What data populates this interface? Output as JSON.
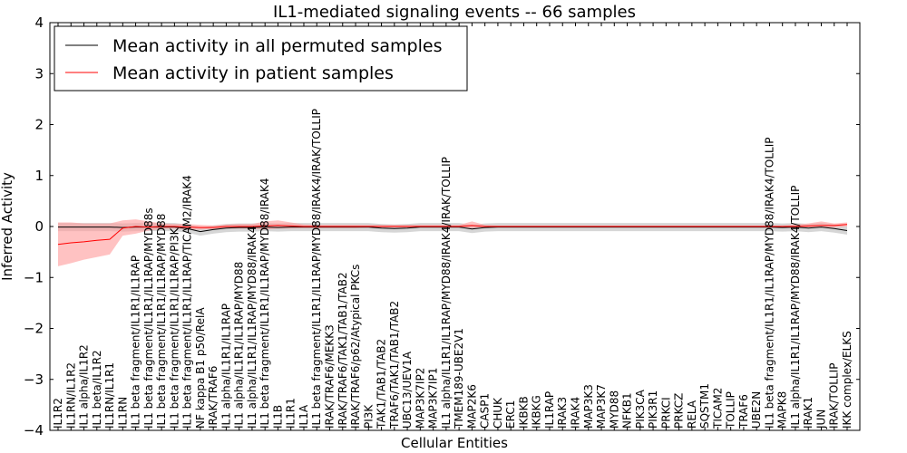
{
  "chart_data": {
    "type": "line",
    "title": "IL1-mediated signaling events -- 66 samples",
    "xlabel": "Cellular Entities",
    "ylabel": "Inferred Activity",
    "ylim": [
      -4,
      4
    ],
    "yticks": [
      -4,
      -3,
      -2,
      -1,
      0,
      1,
      2,
      3,
      4
    ],
    "grid": false,
    "legend_position": "top-left",
    "colors": {
      "permuted": "#000000",
      "patient": "#ff0000",
      "patient_band": "#ff9a9a",
      "permuted_band": "#cfcfcf"
    },
    "categories": [
      "IL1R2",
      "IL1RN/IL1R2",
      "IL1 alpha/IL1R2",
      "IL1 beta/IL1R2",
      "IL1RN/IL1R1",
      "IL1RN",
      "IL1 beta fragment/IL1R1/IL1RAP",
      "IL1 beta fragment/IL1R1/IL1RAP/MYD88s",
      "IL1 beta fragment/IL1R1/IL1RAP/MYD88",
      "IL1 beta fragment/IL1R1/IL1RAP/PI3K",
      "IL1 beta fragment/IL1R1/IL1RAP/TICAM2/IRAK4",
      "NF kappa B1 p50/RelA",
      "IRAK/TRAF6",
      "IL1 alpha/IL1R1/IL1RAP",
      "IL1 alpha/IL1R1/IL1RAP/MYD88",
      "IL1 alpha/IL1R1/IL1RAP/MYD88/IRAK4",
      "IL1 beta fragment/IL1R1/IL1RAP/MYD88/IRAK4",
      "IL1B",
      "IL1R1",
      "IL1A",
      "IL1 beta fragment/IL1R1/IL1RAP/MYD88/IRAK4/IRAK/TOLLIP",
      "IRAK/TRAF6/MEKK3",
      "IRAK/TRAF6/TAK1/TAB1/TAB2",
      "IRAK/TRAF6/p62/Atypical PKCs",
      "PI3K",
      "TAK1/TAB1/TAB2",
      "TRAF6/TAK1/TAB1/TAB2",
      "UBC13/UEV1A",
      "MAP3K7IP2",
      "MAP3K7IP1",
      "IL1 alpha/IL1R1/IL1RAP/MYD88/IRAK4/IRAK/TOLLIP",
      "TMEM189-UBE2V1",
      "MAP2K6",
      "CASP1",
      "CHUK",
      "ERC1",
      "IKBKB",
      "IKBKG",
      "IL1RAP",
      "IRAK3",
      "IRAK4",
      "MAP3K3",
      "MAP3K7",
      "MYD88",
      "NFKB1",
      "PIK3CA",
      "PIK3R1",
      "PRKCI",
      "PRKCZ",
      "RELA",
      "SQSTM1",
      "TICAM2",
      "TOLLIP",
      "TRAF6",
      "UBE2N",
      "IL1 beta fragment/IL1R1/IL1RAP/MYD88/IRAK4/TOLLIP",
      "MAPK8",
      "IL1 alpha/IL1R1/IL1RAP/MYD88/IRAK4/TOLLIP",
      "IRAK1",
      "JUN",
      "IRAK/TOLLIP",
      "IKK complex/ELKS"
    ],
    "series": [
      {
        "name": "Mean activity in all permuted samples",
        "color": "#000000",
        "values": [
          -0.01,
          -0.01,
          -0.01,
          -0.01,
          -0.01,
          -0.02,
          -0.01,
          -0.01,
          -0.01,
          -0.01,
          -0.04,
          -0.1,
          -0.06,
          -0.03,
          -0.02,
          -0.02,
          -0.01,
          -0.02,
          -0.01,
          -0.01,
          -0.01,
          -0.01,
          -0.01,
          -0.01,
          -0.01,
          -0.03,
          -0.04,
          -0.03,
          -0.01,
          -0.01,
          -0.01,
          -0.01,
          -0.05,
          -0.02,
          -0.01,
          -0.01,
          -0.01,
          -0.01,
          -0.01,
          -0.01,
          -0.01,
          -0.01,
          -0.01,
          -0.01,
          -0.01,
          -0.01,
          -0.01,
          -0.01,
          -0.01,
          -0.01,
          -0.01,
          -0.01,
          -0.01,
          -0.01,
          -0.01,
          -0.01,
          -0.02,
          -0.01,
          -0.03,
          -0.01,
          -0.04,
          -0.08
        ],
        "band_low": [
          -0.09,
          -0.09,
          -0.09,
          -0.09,
          -0.09,
          -0.1,
          -0.09,
          -0.09,
          -0.09,
          -0.09,
          -0.12,
          -0.18,
          -0.14,
          -0.11,
          -0.1,
          -0.1,
          -0.09,
          -0.1,
          -0.09,
          -0.09,
          -0.09,
          -0.09,
          -0.09,
          -0.09,
          -0.09,
          -0.11,
          -0.12,
          -0.11,
          -0.09,
          -0.09,
          -0.09,
          -0.09,
          -0.13,
          -0.1,
          -0.09,
          -0.09,
          -0.09,
          -0.09,
          -0.09,
          -0.09,
          -0.09,
          -0.09,
          -0.09,
          -0.09,
          -0.09,
          -0.09,
          -0.09,
          -0.09,
          -0.09,
          -0.09,
          -0.09,
          -0.09,
          -0.09,
          -0.09,
          -0.09,
          -0.09,
          -0.1,
          -0.09,
          -0.11,
          -0.09,
          -0.12,
          -0.16
        ],
        "band_high": [
          0.07,
          0.07,
          0.07,
          0.07,
          0.07,
          0.06,
          0.07,
          0.07,
          0.07,
          0.07,
          0.04,
          -0.02,
          0.02,
          0.05,
          0.06,
          0.06,
          0.07,
          0.06,
          0.07,
          0.07,
          0.07,
          0.07,
          0.07,
          0.07,
          0.07,
          0.05,
          0.04,
          0.05,
          0.07,
          0.07,
          0.07,
          0.07,
          0.03,
          0.06,
          0.07,
          0.07,
          0.07,
          0.07,
          0.07,
          0.07,
          0.07,
          0.07,
          0.07,
          0.07,
          0.07,
          0.07,
          0.07,
          0.07,
          0.07,
          0.07,
          0.07,
          0.07,
          0.07,
          0.07,
          0.07,
          0.07,
          0.06,
          0.07,
          0.05,
          0.07,
          0.04,
          0.0
        ]
      },
      {
        "name": "Mean activity in patient samples",
        "color": "#ff0000",
        "values": [
          -0.35,
          -0.32,
          -0.3,
          -0.27,
          -0.25,
          -0.03,
          0.0,
          -0.01,
          0.0,
          0.0,
          -0.01,
          -0.02,
          -0.02,
          0.0,
          0.0,
          0.0,
          0.01,
          0.02,
          0.01,
          0.0,
          0.0,
          0.0,
          0.0,
          0.0,
          0.0,
          0.0,
          0.0,
          0.0,
          0.0,
          0.0,
          0.0,
          0.0,
          0.02,
          0.0,
          0.0,
          0.0,
          0.0,
          0.0,
          0.0,
          0.0,
          0.0,
          0.0,
          0.0,
          0.0,
          0.0,
          0.0,
          0.0,
          0.0,
          0.0,
          0.0,
          0.0,
          0.0,
          0.0,
          0.0,
          0.0,
          0.0,
          0.0,
          0.0,
          0.01,
          0.02,
          0.02,
          0.04
        ],
        "band_low": [
          -0.78,
          -0.72,
          -0.65,
          -0.6,
          -0.55,
          -0.18,
          -0.14,
          -0.08,
          -0.05,
          -0.04,
          -0.06,
          -0.06,
          -0.05,
          -0.04,
          -0.04,
          -0.04,
          -0.06,
          -0.04,
          -0.04,
          -0.03,
          -0.03,
          -0.03,
          -0.03,
          -0.03,
          -0.02,
          -0.02,
          -0.02,
          -0.02,
          -0.02,
          -0.02,
          -0.02,
          -0.02,
          -0.03,
          -0.02,
          -0.02,
          -0.02,
          -0.02,
          -0.02,
          -0.02,
          -0.02,
          -0.02,
          -0.02,
          -0.02,
          -0.02,
          -0.02,
          -0.02,
          -0.02,
          -0.02,
          -0.02,
          -0.02,
          -0.02,
          -0.02,
          -0.02,
          -0.02,
          -0.02,
          -0.02,
          -0.02,
          -0.02,
          -0.02,
          -0.02,
          -0.02,
          0.0
        ],
        "band_high": [
          0.08,
          0.08,
          0.06,
          0.06,
          0.06,
          0.12,
          0.14,
          0.1,
          0.06,
          0.05,
          0.05,
          0.03,
          0.02,
          0.04,
          0.05,
          0.05,
          0.1,
          0.12,
          0.08,
          0.04,
          0.03,
          0.03,
          0.03,
          0.03,
          0.03,
          0.03,
          0.03,
          0.03,
          0.03,
          0.03,
          0.03,
          0.03,
          0.1,
          0.03,
          0.02,
          0.02,
          0.02,
          0.02,
          0.02,
          0.02,
          0.02,
          0.02,
          0.02,
          0.02,
          0.02,
          0.02,
          0.02,
          0.02,
          0.02,
          0.02,
          0.02,
          0.02,
          0.02,
          0.02,
          0.02,
          0.02,
          0.02,
          0.04,
          0.06,
          0.1,
          0.06,
          0.08
        ]
      }
    ]
  }
}
